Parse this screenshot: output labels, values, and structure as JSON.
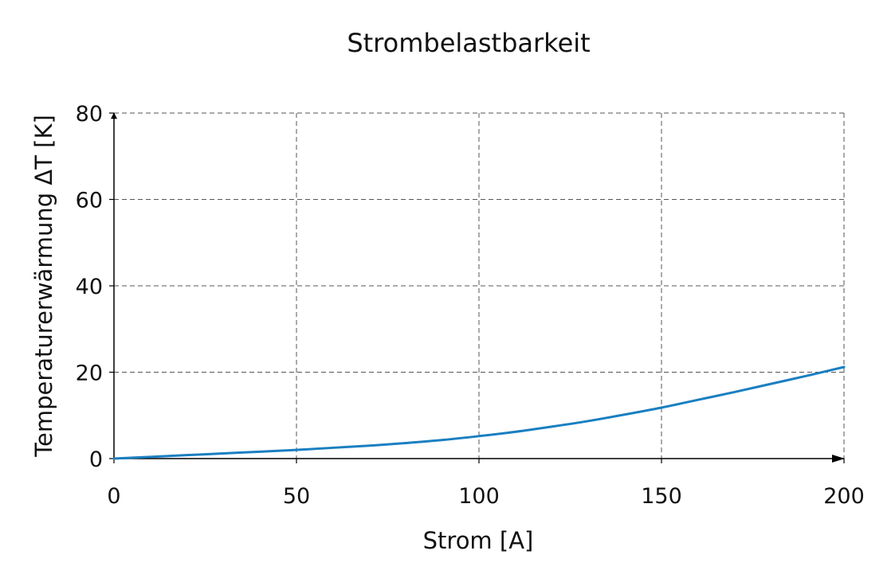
{
  "chart_data": {
    "type": "line",
    "title": "Strombelastbarkeit",
    "xlabel": "Strom [A]",
    "ylabel": "Temperaturerwärmung ΔT [K]",
    "xlim": [
      0,
      200
    ],
    "ylim": [
      0,
      80
    ],
    "x_ticks": [
      0,
      50,
      100,
      150,
      200
    ],
    "y_ticks": [
      0,
      20,
      40,
      60,
      80
    ],
    "grid": true,
    "series": [
      {
        "color": "#1a7fc1",
        "x": [
          0,
          10,
          20,
          30,
          40,
          50,
          60,
          70,
          80,
          90,
          100,
          110,
          120,
          130,
          140,
          150,
          160,
          170,
          180,
          190,
          200
        ],
        "y": [
          0,
          0.4,
          0.8,
          1.2,
          1.6,
          2.0,
          2.5,
          3.0,
          3.6,
          4.3,
          5.2,
          6.2,
          7.4,
          8.7,
          10.2,
          11.8,
          13.6,
          15.4,
          17.3,
          19.2,
          21.2
        ]
      }
    ]
  }
}
